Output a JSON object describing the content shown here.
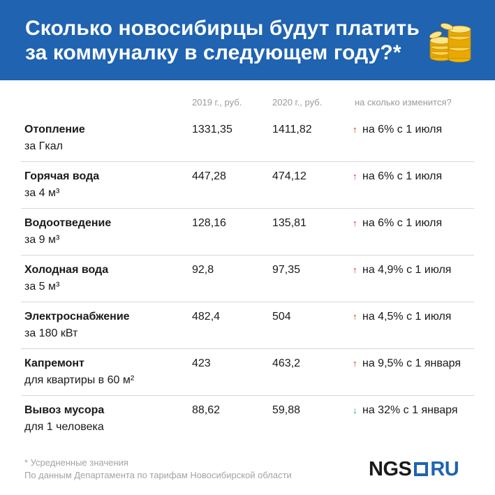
{
  "header": {
    "title_line1": "Сколько новосибирцы будут платить",
    "title_line2": "за коммуналку в следующем году?*",
    "icon": "coins-stack-icon",
    "bg_color": "#1f63b1"
  },
  "columns": {
    "y2019": "2019 г., руб.",
    "y2020": "2020 г., руб.",
    "change": "на сколько изменится?"
  },
  "rows": [
    {
      "name": "Отопление",
      "unit": "за Гкал",
      "v2019": "1331,35",
      "v2020": "1411,82",
      "arrow": "↑",
      "change": "на 6% с 1 июля"
    },
    {
      "name": "Горячая вода",
      "unit": "за 4 м³",
      "v2019": "447,28",
      "v2020": "474,12",
      "arrow": "↑",
      "change": "на 6% с 1 июля"
    },
    {
      "name": "Водоотведение",
      "unit": "за 9 м³",
      "v2019": "128,16",
      "v2020": "135,81",
      "arrow": "↑",
      "change": "на 6% с 1 июля"
    },
    {
      "name": "Холодная вода",
      "unit": "за 5 м³",
      "v2019": "92,8",
      "v2020": "97,35",
      "arrow": "↑",
      "change": "на 4,9% с 1 июля"
    },
    {
      "name": "Электроснабжение",
      "unit": "за 180 кВт",
      "v2019": "482,4",
      "v2020": "504",
      "arrow": "↑",
      "change": "на 4,5% с 1 июля"
    },
    {
      "name": "Капремонт",
      "unit": "для квартиры в 60 м²",
      "v2019": "423",
      "v2020": "463,2",
      "arrow": "↑",
      "change": "на 9,5% с 1 января"
    },
    {
      "name": "Вывоз мусора",
      "unit": "для 1 человека",
      "v2019": "88,62",
      "v2020": "59,88",
      "arrow": "↓",
      "change": "на 32% с 1 января"
    }
  ],
  "footer": {
    "note": "* Усредненные значения",
    "source": "По данным Департамента по тарифам Новосибирской области"
  },
  "logo": {
    "left": "NGS",
    "right": "RU"
  },
  "colors": {
    "up": "#e1251b",
    "down": "#2f9e3a"
  }
}
